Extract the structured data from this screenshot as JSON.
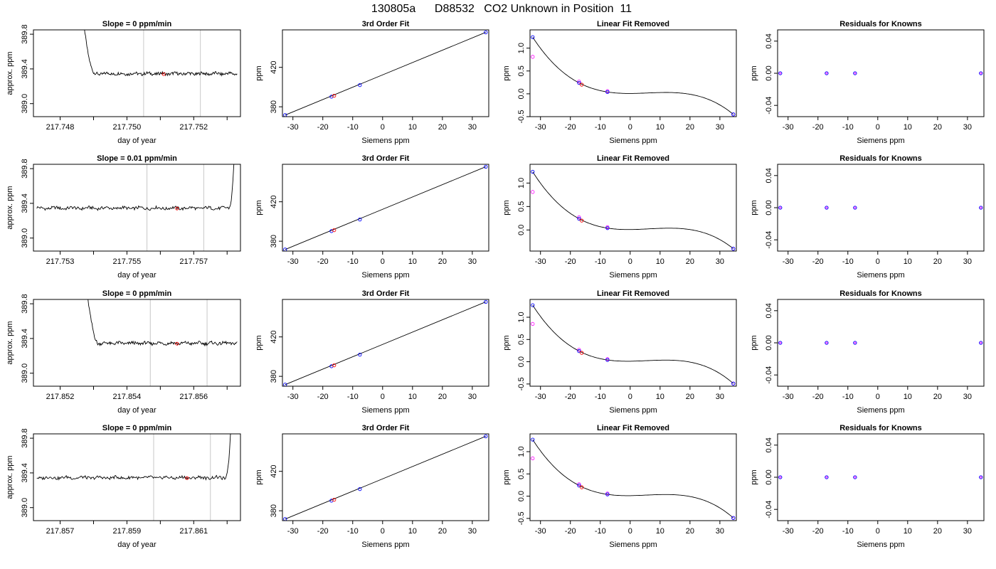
{
  "figure": {
    "title": "130805a      D88532   CO2 Unknown in Position  11"
  },
  "chart_data": [
    {
      "type": "line",
      "row": 0,
      "col": 0,
      "title": "Slope =  0  ppm/min",
      "xlabel": "day of year",
      "ylabel": "approx. ppm",
      "xlim": [
        217.7472,
        217.7534
      ],
      "ylim": [
        388.85,
        389.85
      ],
      "xticks": [
        217.748,
        217.75,
        217.752
      ],
      "xtick_labels": [
        "217.748",
        "217.750",
        "217.752"
      ],
      "yticks": [
        389.0,
        389.4,
        389.8
      ],
      "ytick_labels": [
        "389.0",
        "389.4",
        "389.8"
      ],
      "vlines": [
        217.7505,
        217.7522
      ],
      "mean_point": {
        "x": 217.7511,
        "y": 389.34
      },
      "trace": {
        "start": 217.7485,
        "end": 217.7533,
        "spike_side": "left",
        "spike_end": 217.749,
        "baseline": 389.345
      }
    },
    {
      "type": "line",
      "row": 1,
      "col": 0,
      "title": "Slope =  0.01  ppm/min",
      "xlabel": "day of year",
      "ylabel": "approx. ppm",
      "xlim": [
        217.7522,
        217.7584
      ],
      "ylim": [
        388.85,
        389.85
      ],
      "xticks": [
        217.753,
        217.755,
        217.757
      ],
      "xtick_labels": [
        "217.753",
        "217.755",
        "217.757"
      ],
      "yticks": [
        389.0,
        389.4,
        389.8
      ],
      "ytick_labels": [
        "389.0",
        "389.4",
        "389.8"
      ],
      "vlines": [
        217.7556,
        217.7573
      ],
      "mean_point": {
        "x": 217.7565,
        "y": 389.34
      },
      "trace": {
        "start": 217.7523,
        "end": 217.7583,
        "spike_side": "right",
        "spike_start": 217.75805,
        "baseline": 389.345
      }
    },
    {
      "type": "line",
      "row": 2,
      "col": 0,
      "title": "Slope =  0  ppm/min",
      "xlabel": "day of year",
      "ylabel": "approx. ppm",
      "xlim": [
        217.8512,
        217.8574
      ],
      "ylim": [
        388.85,
        389.85
      ],
      "xticks": [
        217.852,
        217.854,
        217.856
      ],
      "xtick_labels": [
        "217.852",
        "217.854",
        "217.856"
      ],
      "yticks": [
        389.0,
        389.4,
        389.8
      ],
      "ytick_labels": [
        "389.0",
        "389.4",
        "389.8"
      ],
      "vlines": [
        217.8547,
        217.8564
      ],
      "mean_point": {
        "x": 217.8555,
        "y": 389.34
      },
      "trace": {
        "start": 217.8526,
        "end": 217.8573,
        "spike_side": "left",
        "spike_end": 217.8531,
        "baseline": 389.345
      }
    },
    {
      "type": "line",
      "row": 3,
      "col": 0,
      "title": "Slope =  0  ppm/min",
      "xlabel": "day of year",
      "ylabel": "approx. ppm",
      "xlim": [
        217.8562,
        217.8624
      ],
      "ylim": [
        388.85,
        389.85
      ],
      "xticks": [
        217.857,
        217.859,
        217.861
      ],
      "xtick_labels": [
        "217.857",
        "217.859",
        "217.861"
      ],
      "yticks": [
        389.0,
        389.4,
        389.8
      ],
      "ytick_labels": [
        "389.0",
        "389.4",
        "389.8"
      ],
      "vlines": [
        217.8598,
        217.8615
      ],
      "mean_point": {
        "x": 217.8608,
        "y": 389.34
      },
      "trace": {
        "start": 217.8563,
        "end": 217.8622,
        "spike_side": "right",
        "spike_start": 217.86195,
        "baseline": 389.345
      }
    },
    {
      "type": "scatter",
      "row": 0,
      "col": 1,
      "title": "3rd Order Fit",
      "xlabel": "Siemens ppm",
      "ylabel": "ppm",
      "xlim": [
        -33.5,
        35.5
      ],
      "ylim": [
        370,
        458
      ],
      "xticks": [
        -30,
        -20,
        -10,
        0,
        10,
        20,
        30
      ],
      "xtick_labels": [
        "-30",
        "-20",
        "-10",
        "0",
        "10",
        "20",
        "30"
      ],
      "yticks": [
        380,
        420
      ],
      "ytick_labels": [
        "380",
        "420"
      ],
      "line": [
        [
          -32.6,
          371.6
        ],
        [
          34.5,
          455.5
        ]
      ],
      "knowns": [
        [
          -32.6,
          371.6
        ],
        [
          -17.1,
          390.3
        ],
        [
          -7.6,
          402.0
        ],
        [
          34.5,
          455.5
        ]
      ],
      "unknowns": [
        [
          -16.2,
          391.2
        ]
      ]
    },
    {
      "type": "scatter",
      "row": 1,
      "col": 1,
      "title": "3rd Order Fit",
      "xlabel": "Siemens ppm",
      "ylabel": "ppm",
      "xlim": [
        -33.5,
        35.5
      ],
      "ylim": [
        370,
        458
      ],
      "xticks": [
        -30,
        -20,
        -10,
        0,
        10,
        20,
        30
      ],
      "xtick_labels": [
        "-30",
        "-20",
        "-10",
        "0",
        "10",
        "20",
        "30"
      ],
      "yticks": [
        380,
        420
      ],
      "ytick_labels": [
        "380",
        "420"
      ],
      "line": [
        [
          -32.6,
          371.6
        ],
        [
          34.5,
          455.5
        ]
      ],
      "knowns": [
        [
          -32.6,
          371.6
        ],
        [
          -17.1,
          390.3
        ],
        [
          -7.6,
          402.0
        ],
        [
          34.5,
          455.5
        ]
      ],
      "unknowns": [
        [
          -16.2,
          391.2
        ]
      ]
    },
    {
      "type": "scatter",
      "row": 2,
      "col": 1,
      "title": "3rd Order Fit",
      "xlabel": "Siemens ppm",
      "ylabel": "ppm",
      "xlim": [
        -33.5,
        35.5
      ],
      "ylim": [
        370,
        458
      ],
      "xticks": [
        -30,
        -20,
        -10,
        0,
        10,
        20,
        30
      ],
      "xtick_labels": [
        "-30",
        "-20",
        "-10",
        "0",
        "10",
        "20",
        "30"
      ],
      "yticks": [
        380,
        420
      ],
      "ytick_labels": [
        "380",
        "420"
      ],
      "line": [
        [
          -32.6,
          371.6
        ],
        [
          34.5,
          455.5
        ]
      ],
      "knowns": [
        [
          -32.6,
          371.6
        ],
        [
          -17.1,
          390.3
        ],
        [
          -7.6,
          402.0
        ],
        [
          34.5,
          455.5
        ]
      ],
      "unknowns": [
        [
          -16.2,
          391.2
        ]
      ]
    },
    {
      "type": "scatter",
      "row": 3,
      "col": 1,
      "title": "3rd Order Fit",
      "xlabel": "Siemens ppm",
      "ylabel": "ppm",
      "xlim": [
        -33.5,
        35.5
      ],
      "ylim": [
        370,
        458
      ],
      "xticks": [
        -30,
        -20,
        -10,
        0,
        10,
        20,
        30
      ],
      "xtick_labels": [
        "-30",
        "-20",
        "-10",
        "0",
        "10",
        "20",
        "30"
      ],
      "yticks": [
        380,
        420
      ],
      "ytick_labels": [
        "380",
        "420"
      ],
      "line": [
        [
          -32.6,
          371.6
        ],
        [
          34.5,
          455.5
        ]
      ],
      "knowns": [
        [
          -32.6,
          371.6
        ],
        [
          -17.1,
          390.3
        ],
        [
          -7.6,
          402.0
        ],
        [
          34.5,
          455.5
        ]
      ],
      "unknowns": [
        [
          -16.2,
          391.2
        ]
      ]
    },
    {
      "type": "scatter",
      "row": 0,
      "col": 2,
      "title": "Linear Fit Removed",
      "xlabel": "Siemens ppm",
      "ylabel": "ppm",
      "xlim": [
        -33.5,
        35.5
      ],
      "ylim": [
        -0.5,
        1.4
      ],
      "xticks": [
        -30,
        -20,
        -10,
        0,
        10,
        20,
        30
      ],
      "xtick_labels": [
        "-30",
        "-20",
        "-10",
        "0",
        "10",
        "20",
        "30"
      ],
      "yticks": [
        -0.5,
        0.0,
        0.5,
        1.0
      ],
      "ytick_labels": [
        "-0.5",
        "0.0",
        "0.5",
        "1.0"
      ],
      "curve_pts": [
        [
          -32.6,
          1.24
        ],
        [
          -17.1,
          0.24
        ],
        [
          -7.6,
          0.04
        ],
        [
          34.5,
          -0.45
        ]
      ],
      "knowns": [
        [
          -32.6,
          1.24
        ],
        [
          -17.1,
          0.24
        ],
        [
          -7.6,
          0.04
        ],
        [
          34.5,
          -0.45
        ]
      ],
      "magenta": [
        [
          -32.6,
          0.81
        ],
        [
          -17.1,
          0.27
        ],
        [
          -7.6,
          0.06
        ],
        [
          34.5,
          -0.45
        ]
      ],
      "unknowns": [
        [
          -16.2,
          0.2
        ]
      ]
    },
    {
      "type": "scatter",
      "row": 1,
      "col": 2,
      "title": "Linear Fit Removed",
      "xlabel": "Siemens ppm",
      "ylabel": "ppm",
      "xlim": [
        -33.5,
        35.5
      ],
      "ylim": [
        -0.45,
        1.4
      ],
      "xticks": [
        -30,
        -20,
        -10,
        0,
        10,
        20,
        30
      ],
      "xtick_labels": [
        "-30",
        "-20",
        "-10",
        "0",
        "10",
        "20",
        "30"
      ],
      "yticks": [
        0.0,
        0.5,
        1.0
      ],
      "ytick_labels": [
        "0.0",
        "0.5",
        "1.0"
      ],
      "curve_pts": [
        [
          -32.6,
          1.24
        ],
        [
          -17.1,
          0.24
        ],
        [
          -7.6,
          0.04
        ],
        [
          34.5,
          -0.4
        ]
      ],
      "knowns": [
        [
          -32.6,
          1.24
        ],
        [
          -17.1,
          0.24
        ],
        [
          -7.6,
          0.04
        ],
        [
          34.5,
          -0.4
        ]
      ],
      "magenta": [
        [
          -32.6,
          0.81
        ],
        [
          -17.1,
          0.27
        ],
        [
          -7.6,
          0.06
        ],
        [
          34.5,
          -0.4
        ]
      ],
      "unknowns": [
        [
          -16.2,
          0.2
        ]
      ]
    },
    {
      "type": "scatter",
      "row": 2,
      "col": 2,
      "title": "Linear Fit Removed",
      "xlabel": "Siemens ppm",
      "ylabel": "ppm",
      "xlim": [
        -33.5,
        35.5
      ],
      "ylim": [
        -0.55,
        1.4
      ],
      "xticks": [
        -30,
        -20,
        -10,
        0,
        10,
        20,
        30
      ],
      "xtick_labels": [
        "-30",
        "-20",
        "-10",
        "0",
        "10",
        "20",
        "30"
      ],
      "yticks": [
        -0.5,
        0.0,
        0.5,
        1.0
      ],
      "ytick_labels": [
        "-0.5",
        "0.0",
        "0.5",
        "1.0"
      ],
      "curve_pts": [
        [
          -32.6,
          1.27
        ],
        [
          -17.1,
          0.24
        ],
        [
          -7.6,
          0.04
        ],
        [
          34.5,
          -0.49
        ]
      ],
      "knowns": [
        [
          -32.6,
          1.27
        ],
        [
          -17.1,
          0.24
        ],
        [
          -7.6,
          0.04
        ],
        [
          34.5,
          -0.49
        ]
      ],
      "magenta": [
        [
          -32.6,
          0.85
        ],
        [
          -17.1,
          0.27
        ],
        [
          -7.6,
          0.06
        ],
        [
          34.5,
          -0.49
        ]
      ],
      "unknowns": [
        [
          -16.2,
          0.2
        ]
      ]
    },
    {
      "type": "scatter",
      "row": 3,
      "col": 2,
      "title": "Linear Fit Removed",
      "xlabel": "Siemens ppm",
      "ylabel": "ppm",
      "xlim": [
        -33.5,
        35.5
      ],
      "ylim": [
        -0.55,
        1.4
      ],
      "xticks": [
        -30,
        -20,
        -10,
        0,
        10,
        20,
        30
      ],
      "xtick_labels": [
        "-30",
        "-20",
        "-10",
        "0",
        "10",
        "20",
        "30"
      ],
      "yticks": [
        -0.5,
        0.0,
        0.5,
        1.0
      ],
      "ytick_labels": [
        "-0.5",
        "0.0",
        "0.5",
        "1.0"
      ],
      "curve_pts": [
        [
          -32.6,
          1.27
        ],
        [
          -17.1,
          0.24
        ],
        [
          -7.6,
          0.04
        ],
        [
          34.5,
          -0.49
        ]
      ],
      "knowns": [
        [
          -32.6,
          1.27
        ],
        [
          -17.1,
          0.24
        ],
        [
          -7.6,
          0.04
        ],
        [
          34.5,
          -0.49
        ]
      ],
      "magenta": [
        [
          -32.6,
          0.85
        ],
        [
          -17.1,
          0.27
        ],
        [
          -7.6,
          0.06
        ],
        [
          34.5,
          -0.49
        ]
      ],
      "unknowns": [
        [
          -16.2,
          0.2
        ]
      ]
    },
    {
      "type": "scatter",
      "row": 0,
      "col": 3,
      "title": "Residuals for Knowns",
      "xlabel": "Siemens ppm",
      "ylabel": "ppm",
      "xlim": [
        -33.5,
        35.5
      ],
      "ylim": [
        -0.054,
        0.054
      ],
      "xticks": [
        -30,
        -20,
        -10,
        0,
        10,
        20,
        30
      ],
      "xtick_labels": [
        "-30",
        "-20",
        "-10",
        "0",
        "10",
        "20",
        "30"
      ],
      "yticks": [
        -0.04,
        0.0,
        0.04
      ],
      "ytick_labels": [
        "-0.04",
        "0.00",
        "0.04"
      ],
      "knowns": [
        [
          -32.6,
          0
        ],
        [
          -17.1,
          0
        ],
        [
          -7.6,
          0
        ],
        [
          34.5,
          0
        ]
      ]
    },
    {
      "type": "scatter",
      "row": 1,
      "col": 3,
      "title": "Residuals for Knowns",
      "xlabel": "Siemens ppm",
      "ylabel": "ppm",
      "xlim": [
        -33.5,
        35.5
      ],
      "ylim": [
        -0.054,
        0.054
      ],
      "xticks": [
        -30,
        -20,
        -10,
        0,
        10,
        20,
        30
      ],
      "xtick_labels": [
        "-30",
        "-20",
        "-10",
        "0",
        "10",
        "20",
        "30"
      ],
      "yticks": [
        -0.04,
        0.0,
        0.04
      ],
      "ytick_labels": [
        "-0.04",
        "0.00",
        "0.04"
      ],
      "knowns": [
        [
          -32.6,
          0
        ],
        [
          -17.1,
          0
        ],
        [
          -7.6,
          0
        ],
        [
          34.5,
          0
        ]
      ]
    },
    {
      "type": "scatter",
      "row": 2,
      "col": 3,
      "title": "Residuals for Knowns",
      "xlabel": "Siemens ppm",
      "ylabel": "ppm",
      "xlim": [
        -33.5,
        35.5
      ],
      "ylim": [
        -0.054,
        0.054
      ],
      "xticks": [
        -30,
        -20,
        -10,
        0,
        10,
        20,
        30
      ],
      "xtick_labels": [
        "-30",
        "-20",
        "-10",
        "0",
        "10",
        "20",
        "30"
      ],
      "yticks": [
        -0.04,
        0.0,
        0.04
      ],
      "ytick_labels": [
        "-0.04",
        "0.00",
        "0.04"
      ],
      "knowns": [
        [
          -32.6,
          0
        ],
        [
          -17.1,
          0
        ],
        [
          -7.6,
          0
        ],
        [
          34.5,
          0
        ]
      ]
    },
    {
      "type": "scatter",
      "row": 3,
      "col": 3,
      "title": "Residuals for Knowns",
      "xlabel": "Siemens ppm",
      "ylabel": "ppm",
      "xlim": [
        -33.5,
        35.5
      ],
      "ylim": [
        -0.054,
        0.054
      ],
      "xticks": [
        -30,
        -20,
        -10,
        0,
        10,
        20,
        30
      ],
      "xtick_labels": [
        "-30",
        "-20",
        "-10",
        "0",
        "10",
        "20",
        "30"
      ],
      "yticks": [
        -0.04,
        0.0,
        0.04
      ],
      "ytick_labels": [
        "-0.04",
        "0.00",
        "0.04"
      ],
      "knowns": [
        [
          -32.6,
          0
        ],
        [
          -17.1,
          0
        ],
        [
          -7.6,
          0
        ],
        [
          34.5,
          0
        ]
      ]
    }
  ],
  "colors": {
    "axis": "#000000",
    "trace": "#000000",
    "vline": "#c8c8c8",
    "known": "#0000ff",
    "unknown": "#ff0000",
    "magenta": "#ff00ff"
  }
}
